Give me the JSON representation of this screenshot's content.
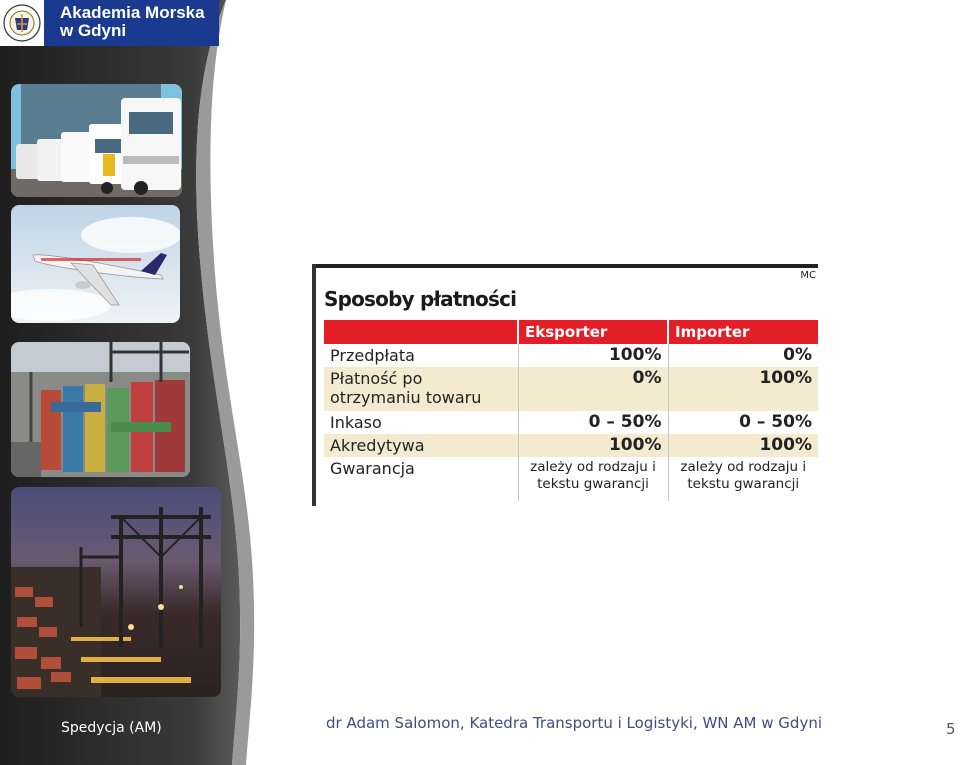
{
  "logo": {
    "line1": "Akademia Morska",
    "line2": "w Gdyni"
  },
  "sidebar": {
    "photos": [
      "truck-fleet-image",
      "airplane-image",
      "container-port-image",
      "night-port-cranes-image"
    ]
  },
  "payment_table": {
    "source_mark": "MC",
    "title": "Sposoby płatności",
    "headers": [
      "",
      "Eksporter",
      "Importer"
    ],
    "rows": [
      {
        "label": "Przedpłata",
        "exporter": "100%",
        "importer": "0%"
      },
      {
        "label": "Płatność po otrzymaniu towaru",
        "exporter": "0%",
        "importer": "100%"
      },
      {
        "label": "Inkaso",
        "exporter": "0 – 50%",
        "importer": "0 – 50%"
      },
      {
        "label": "Akredytywa",
        "exporter": "100%",
        "importer": "100%"
      },
      {
        "label": "Gwarancja",
        "exporter": "zależy od rodzaju i tekstu gwarancji",
        "importer": "zależy od rodzaju i tekstu gwarancji"
      }
    ]
  },
  "footer": {
    "left": "Spedycja (AM)",
    "center": "dr Adam Salomon, Katedra Transportu i Logistyki, WN AM w Gdyni",
    "page_number": "5"
  },
  "colors": {
    "sidebar_dark": "#2b2b2b",
    "logo_blue": "#1a3a8f",
    "table_red": "#e41e26",
    "table_shade": "#f3ead0",
    "footer_text": "#3b4e86"
  }
}
